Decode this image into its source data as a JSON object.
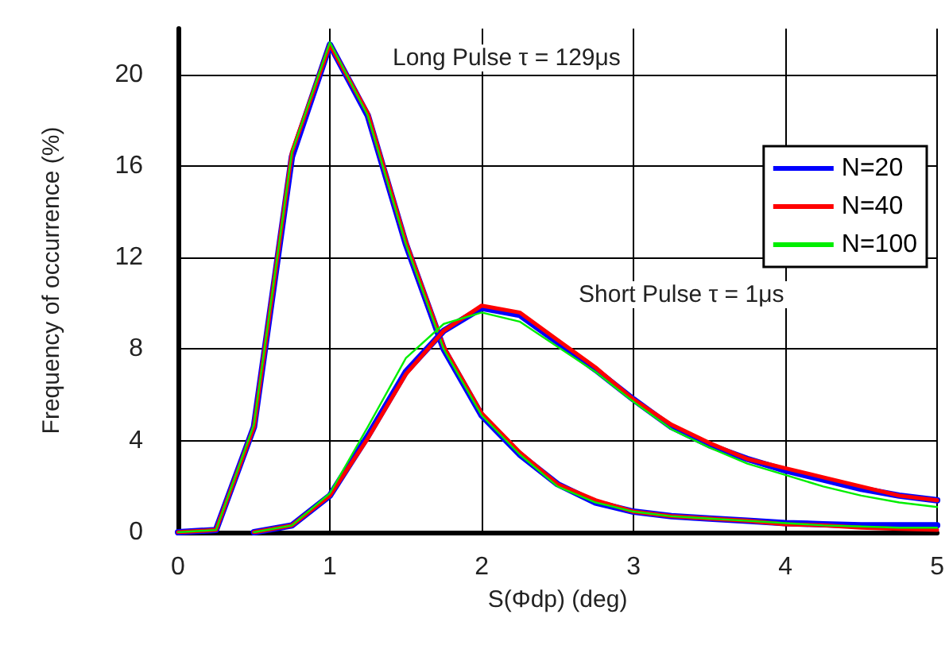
{
  "chart_data": {
    "type": "line",
    "xlabel": "S(Φdp) (deg)",
    "ylabel": "Frequency of occurrence (%)",
    "annotations": [
      "Long Pulse τ = 129μs",
      "Short Pulse τ = 1μs"
    ],
    "x": [
      0,
      0.25,
      0.5,
      0.75,
      1,
      1.25,
      1.5,
      1.75,
      2,
      2.25,
      2.5,
      2.75,
      3,
      3.25,
      3.5,
      3.75,
      4,
      4.25,
      4.5,
      4.75,
      5
    ],
    "series": [
      {
        "name": "N=20",
        "color": "#0000ff",
        "values": [
          0,
          0.1,
          4.6,
          16.4,
          21.3,
          18.2,
          12.6,
          8.0,
          5.1,
          3.4,
          2.1,
          1.3,
          0.9,
          0.7,
          0.6,
          0.5,
          0.4,
          0.35,
          0.3,
          0.3,
          0.3
        ]
      },
      {
        "name": "N=40",
        "color": "#ff0000",
        "values": [
          0,
          0.1,
          4.6,
          16.6,
          21.3,
          18.3,
          12.7,
          8.1,
          5.2,
          3.5,
          2.1,
          1.4,
          0.9,
          0.7,
          0.6,
          0.5,
          0.35,
          0.3,
          0.2,
          0.15,
          0.1
        ]
      },
      {
        "name": "N=100",
        "color": "#00ee00",
        "values": [
          0,
          0.1,
          4.7,
          16.6,
          21.4,
          18.2,
          12.6,
          8.0,
          5.1,
          3.4,
          2.0,
          1.3,
          0.9,
          0.7,
          0.6,
          0.5,
          0.4,
          0.3,
          0.25,
          0.2,
          0.2
        ]
      },
      {
        "color": "#0000ff",
        "values": [
          null,
          null,
          0,
          0.3,
          1.6,
          4.2,
          7.0,
          8.8,
          9.8,
          9.5,
          8.3,
          7.1,
          5.8,
          4.6,
          3.8,
          3.2,
          2.7,
          2.3,
          1.9,
          1.6,
          1.4
        ]
      },
      {
        "color": "#ff0000",
        "values": [
          null,
          null,
          0,
          0.3,
          1.6,
          4.1,
          6.9,
          8.8,
          9.9,
          9.6,
          8.4,
          7.2,
          5.8,
          4.7,
          3.9,
          3.2,
          2.8,
          2.4,
          2.0,
          1.6,
          1.4
        ]
      },
      {
        "color": "#00ee00",
        "values": [
          null,
          null,
          0,
          0.3,
          1.7,
          4.6,
          7.6,
          9.1,
          9.6,
          9.2,
          8.1,
          7.0,
          5.7,
          4.5,
          3.7,
          3.0,
          2.5,
          2.0,
          1.6,
          1.3,
          1.1
        ]
      }
    ],
    "xlim": [
      0,
      5
    ],
    "xticks": [
      0,
      1,
      2,
      3,
      4,
      5
    ],
    "ylim": [
      0,
      22
    ],
    "yticks": [
      0,
      4,
      8,
      12,
      16,
      20
    ],
    "grid": true,
    "legend": "top right",
    "marker": "none",
    "line_style": "solid"
  }
}
